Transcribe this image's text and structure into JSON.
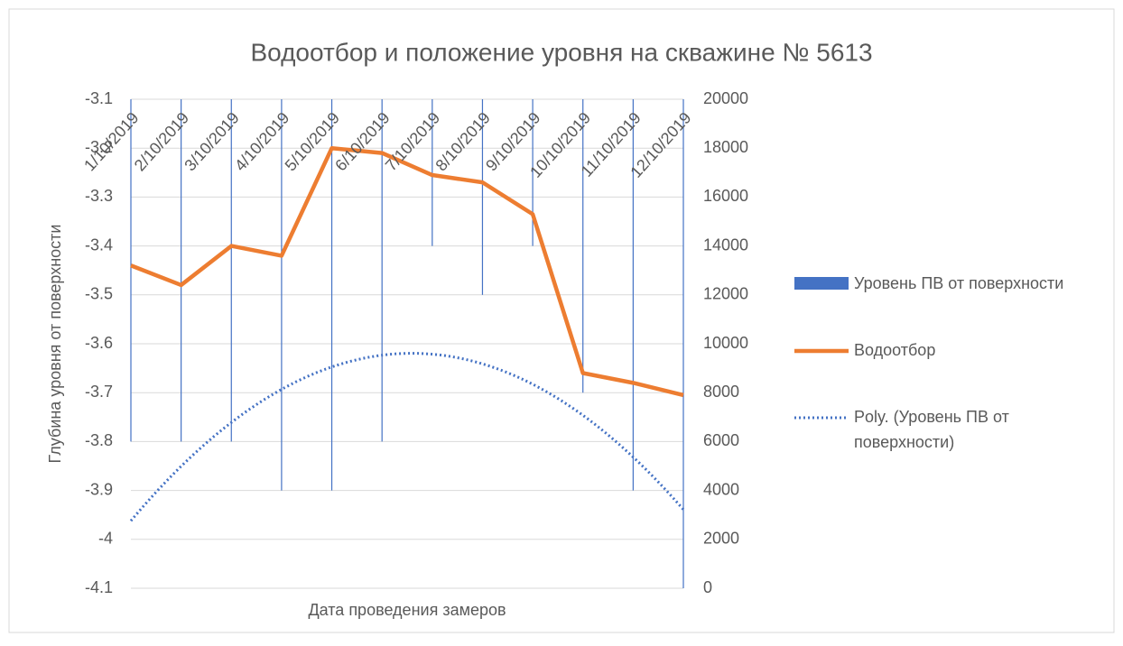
{
  "chart_data": {
    "type": "bar-line",
    "title": "Водоотбор и положение уровня на скважине № 5613",
    "x_label": "Дата проведения замеров",
    "y_label": "Глубина уровня от поверхности",
    "categories": [
      "1/10/2019",
      "2/10/2019",
      "3/10/2019",
      "4/10/2019",
      "5/10/2019",
      "6/10/2019",
      "7/10/2019",
      "8/10/2019",
      "9/10/2019",
      "10/10/2019",
      "11/10/2019",
      "12/10/2019"
    ],
    "series": [
      {
        "name": "Уровень ПВ от поверхности",
        "color": "#4472c4",
        "type": "bar",
        "axis": "y",
        "values": [
          -3.8,
          -3.8,
          -3.8,
          -3.9,
          -3.9,
          -3.8,
          -3.4,
          -3.5,
          -3.4,
          -3.7,
          -3.9,
          -4.1
        ]
      },
      {
        "name": "Водоотбор",
        "color": "#ed7d31",
        "type": "line",
        "axis": "y2",
        "values": [
          13200,
          12400,
          14000,
          13600,
          18000,
          17800,
          16900,
          16600,
          15300,
          8800,
          8400,
          7900
        ]
      }
    ],
    "trendline": {
      "name": "Poly. (Уровень ПВ от поверхности)",
      "series": 0,
      "order": 2,
      "color": "#4472c4"
    },
    "ylim": [
      -3.1,
      -4.1
    ],
    "yticks": [
      -3.1,
      -3.2,
      -3.3,
      -3.4,
      -3.5,
      -3.6,
      -3.7,
      -3.8,
      -3.9,
      -4,
      -4.1
    ],
    "y2lim": [
      0,
      20000
    ],
    "y2ticks": [
      0,
      2000,
      4000,
      6000,
      8000,
      10000,
      12000,
      14000,
      16000,
      18000,
      20000
    ],
    "grid": true,
    "legend": "right"
  }
}
